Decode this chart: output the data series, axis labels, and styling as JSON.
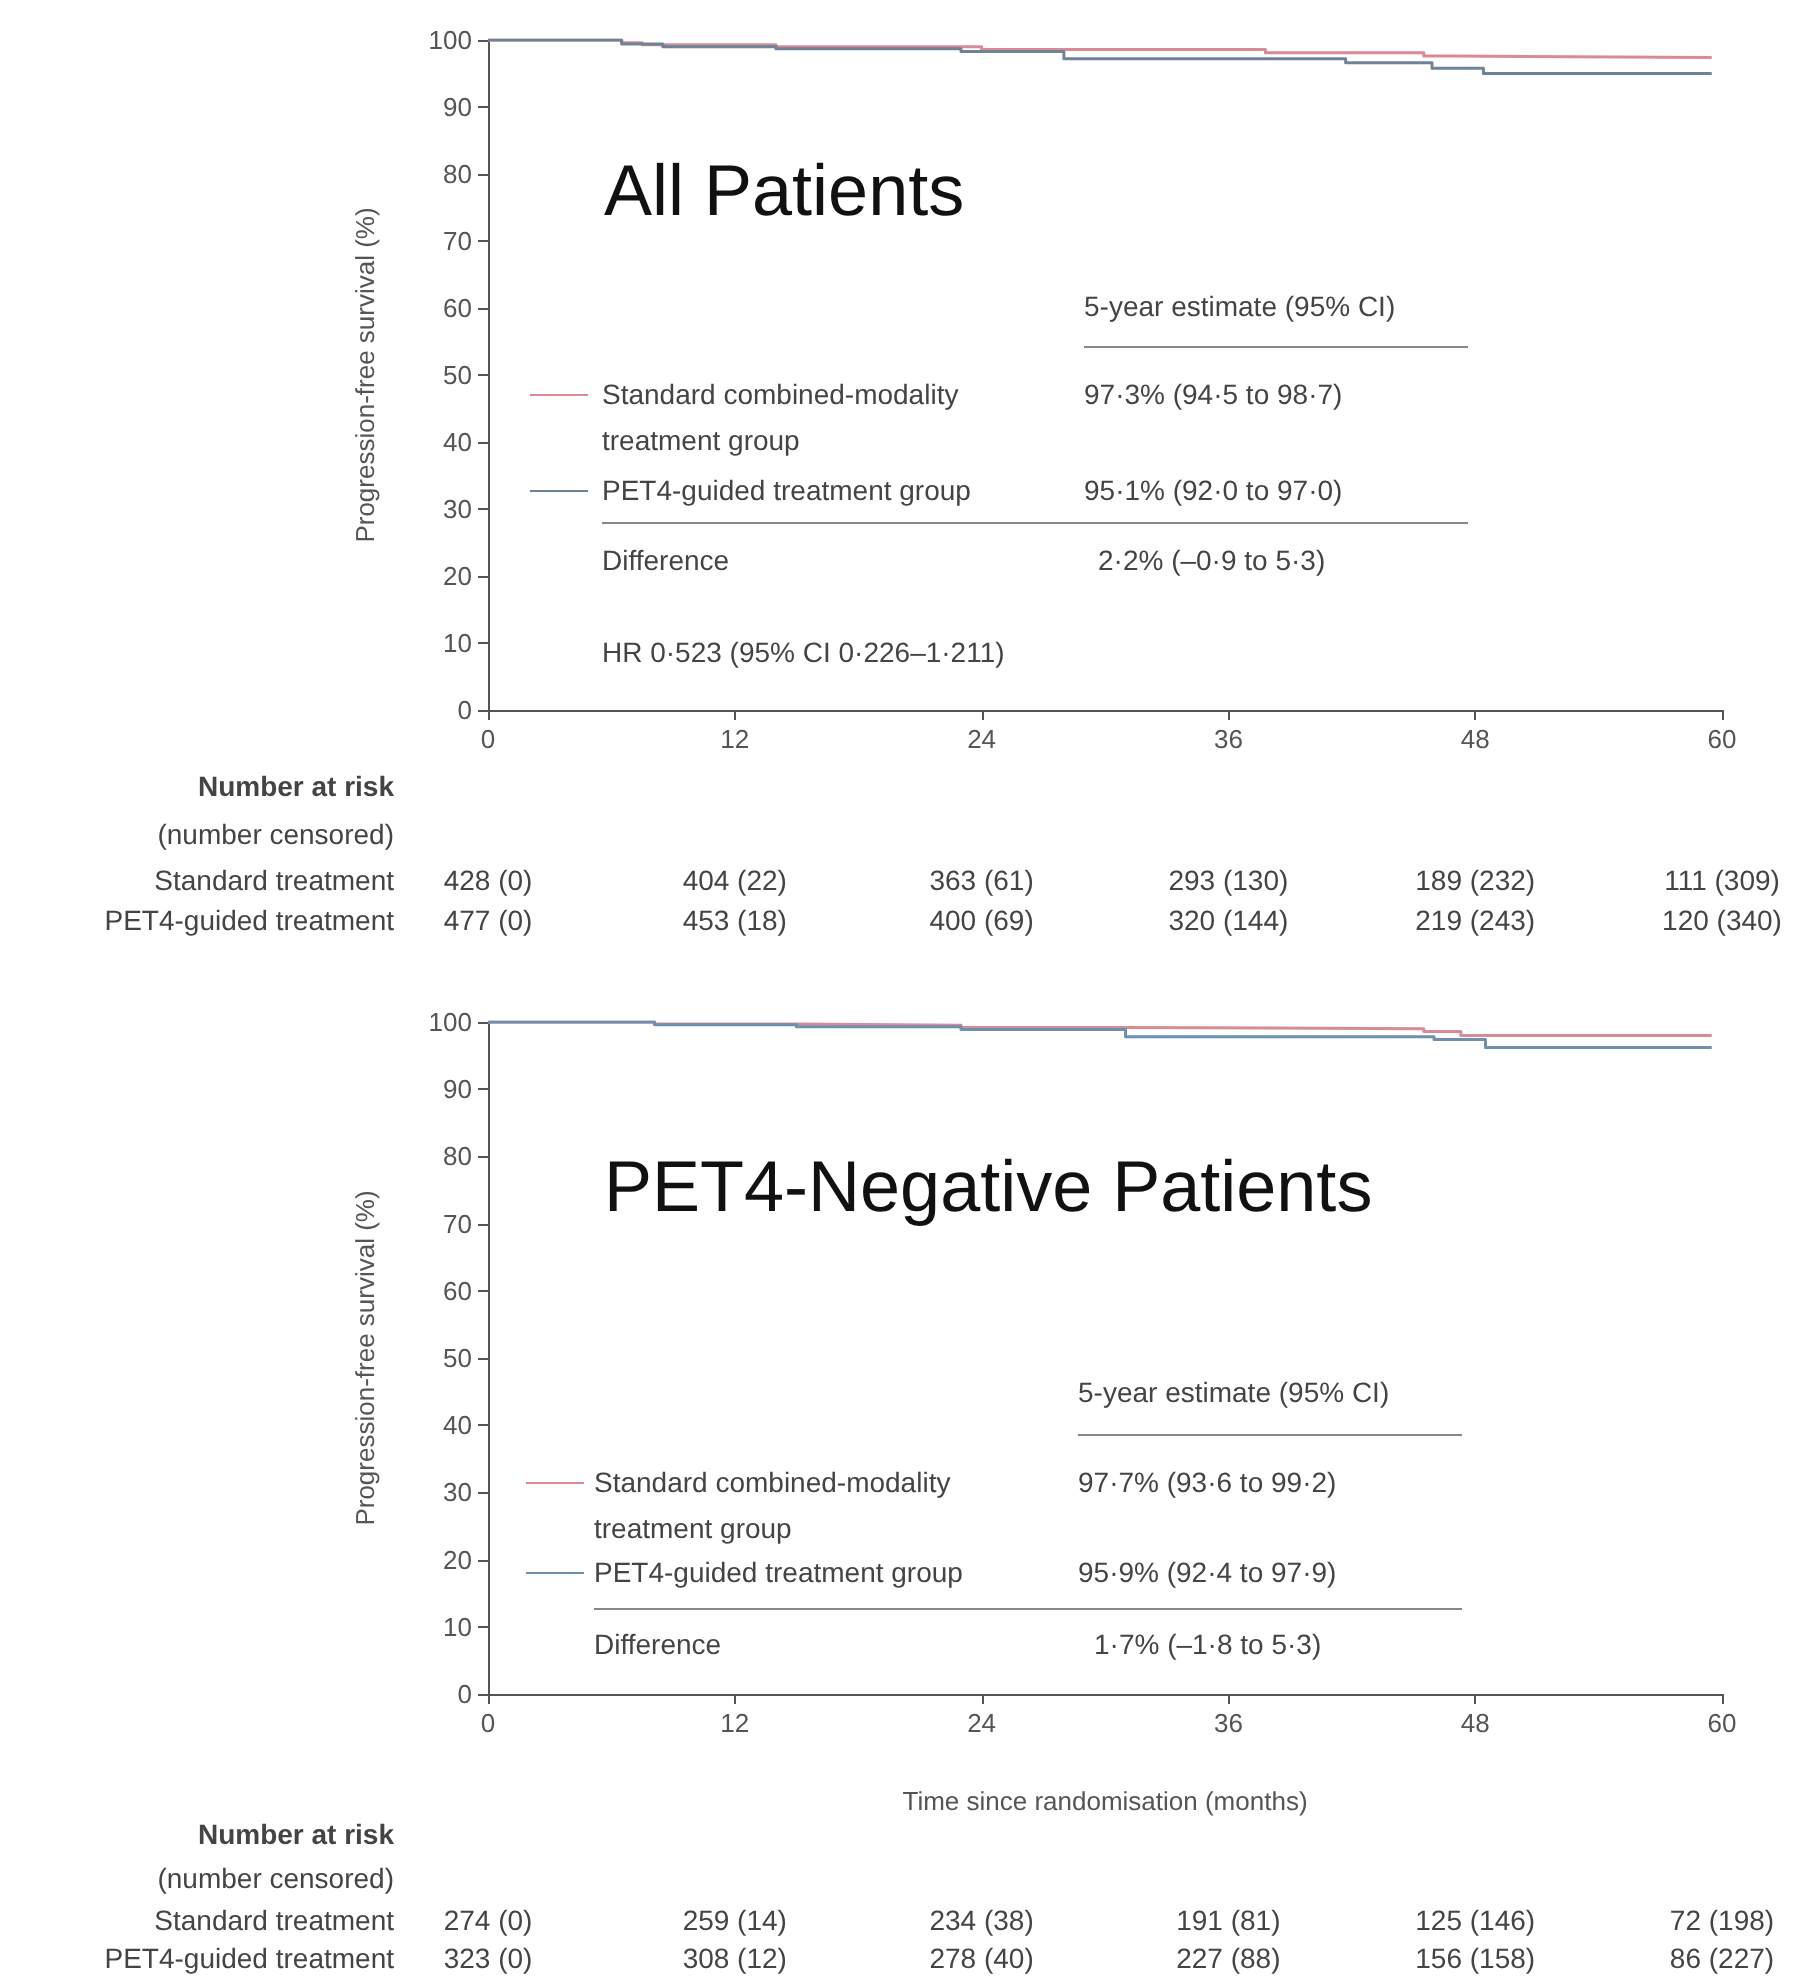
{
  "chart_data": [
    {
      "type": "step",
      "title": "All Patients",
      "ylabel": "Progression-free survival (%)",
      "xlim": [
        0,
        60
      ],
      "xticks": [
        0,
        12,
        24,
        36,
        48,
        60
      ],
      "ylim": [
        0,
        100
      ],
      "yticks": [
        0,
        10,
        20,
        30,
        40,
        50,
        60,
        70,
        80,
        90,
        100
      ],
      "legend": "left",
      "marker": "none",
      "series": [
        {
          "name": "Standard combined-modality treatment group",
          "color": "#d98a95",
          "x": [
            0,
            6.5,
            7.5,
            14,
            24,
            37.8,
            45.5,
            47,
            59.5
          ],
          "values": [
            100,
            99.6,
            99.3,
            99.0,
            98.6,
            98.1,
            97.6,
            97.4,
            97.4
          ]
        },
        {
          "name": "PET4-guided treatment group",
          "color": "#6e8398",
          "x": [
            0,
            6.5,
            8.5,
            14,
            23,
            28,
            41.7,
            45.9,
            48.4,
            59.5
          ],
          "values": [
            100,
            99.4,
            99.0,
            98.7,
            98.3,
            97.2,
            96.6,
            95.8,
            95.0,
            95.0
          ]
        }
      ],
      "annotations": [
        "5-year estimate (95% CI)",
        "97·3% (94·5 to 98·7)",
        "95·1% (92·0 to 97·0)",
        "Difference",
        "2·2% (–0·9 to 5·3)",
        "HR 0·523 (95% CI 0·226–1·211)",
        "Number at risk",
        "(number censored)",
        "Standard treatment",
        "428 (0)",
        "404 (22)",
        "363 (61)",
        "293 (130)",
        "189 (232)",
        "111 (309)",
        "PET4-guided treatment",
        "477 (0)",
        "453 (18)",
        "400 (69)",
        "320 (144)",
        "219 (243)",
        "120 (340)"
      ]
    },
    {
      "type": "step",
      "title": "PET4-Negative Patients",
      "xlabel": "Time since randomisation (months)",
      "ylabel": "Progression-free survival (%)",
      "xlim": [
        0,
        60
      ],
      "xticks": [
        0,
        12,
        24,
        36,
        48,
        60
      ],
      "ylim": [
        0,
        100
      ],
      "yticks": [
        0,
        10,
        20,
        30,
        40,
        50,
        60,
        70,
        80,
        90,
        100
      ],
      "legend": "left",
      "marker": "none",
      "series": [
        {
          "name": "Standard combined-modality treatment group",
          "color": "#d98a95",
          "x": [
            0,
            8.1,
            15,
            23,
            31,
            45.5,
            47.3,
            59.5
          ],
          "values": [
            100,
            99.7,
            99.5,
            99.2,
            99.0,
            98.6,
            98.0,
            98.0
          ]
        },
        {
          "name": "PET4-guided treatment group",
          "color": "#6d8fb0",
          "x": [
            0,
            8.1,
            15,
            23,
            31,
            46,
            48.5,
            59.5
          ],
          "values": [
            100,
            99.6,
            99.3,
            98.9,
            97.8,
            97.4,
            96.2,
            96.2
          ]
        }
      ],
      "annotations": [
        "5-year estimate (95% CI)",
        "97·7% (93·6 to 99·2)",
        "95·9% (92·4 to 97·9)",
        "Difference",
        "1·7% (–1·8 to 5·3)",
        "Number at risk",
        "(number censored)",
        "Standard treatment",
        "274 (0)",
        "259 (14)",
        "234 (38)",
        "191 (81)",
        "125 (146)",
        "72 (198)",
        "PET4-guided treatment",
        "323 (0)",
        "308 (12)",
        "278 (40)",
        "227 (88)",
        "156 (158)",
        "86 (227)"
      ]
    }
  ]
}
